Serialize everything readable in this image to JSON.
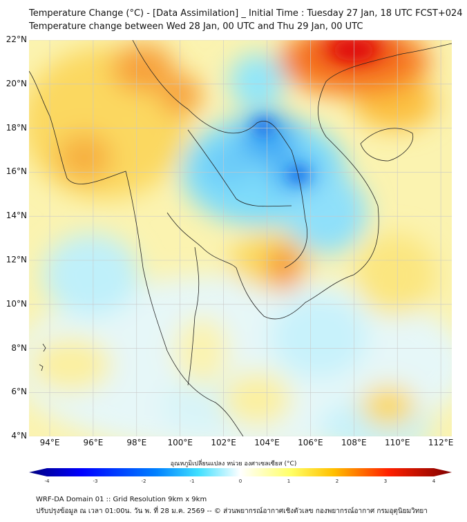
{
  "header": {
    "title_line1": "Temperature Change (°C) - [Data Assimilation] _ Initial Time : Tuesday 27 Jan, 18 UTC FCST+024",
    "title_line2": "Temperature change between Wed 28 Jan, 00 UTC and Thu 29 Jan, 00 UTC"
  },
  "map": {
    "lat_labels": [
      "22°N",
      "20°N",
      "18°N",
      "16°N",
      "14°N",
      "12°N",
      "10°N",
      "8°N",
      "6°N",
      "4°N"
    ],
    "lon_labels": [
      "94°E",
      "96°E",
      "98°E",
      "100°E",
      "102°E",
      "104°E",
      "106°E",
      "108°E",
      "110°E",
      "112°E"
    ],
    "lat_range": [
      4,
      22
    ],
    "lon_range": [
      93,
      113
    ]
  },
  "colorbar": {
    "title": "อุณหภูมิเปลี่ยนแปลง หน่วย องศาเซลเซียส (°C)",
    "ticks": [
      "-4",
      "-3",
      "-2",
      "-1",
      "0",
      "1",
      "2",
      "3",
      "4"
    ],
    "range": [
      -4,
      4
    ],
    "colors": [
      "#00007f",
      "#0000ff",
      "#0080ff",
      "#3fdfff",
      "#ffffff",
      "#ffff66",
      "#ffc000",
      "#ff2000",
      "#7f0000"
    ]
  },
  "footer": {
    "line1": "WRF-DA Domain 01 :: Grid Resolution 9km x 9km",
    "line2": "ปรับปรุงข้อมูล ณ เวลา 01:00น. วัน พ. ที่ 28 ม.ค. 2569 -- © ส่วนพยากรณ์อากาศเชิงตัวเลข กองพยากรณ์อากาศ กรมอุตุนิยมวิทยา"
  }
}
